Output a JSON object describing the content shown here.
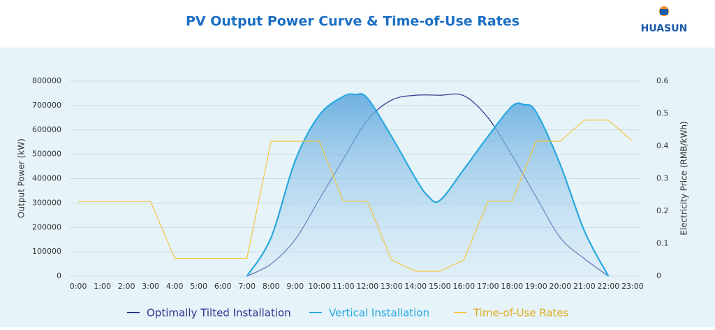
{
  "logo": "HUASUN",
  "chart_data": {
    "type": "line",
    "title": "PV Output Power Curve & Time-of-Use Rates",
    "y_label": "Output Power (kW)",
    "y2_label": "Electricity Price (RMB/kWh)",
    "xlim": [
      -0.35,
      23.35
    ],
    "xticks": [
      {
        "value": 0,
        "label": "0:00"
      },
      {
        "value": 1,
        "label": "1:00"
      },
      {
        "value": 2,
        "label": "2:00"
      },
      {
        "value": 3,
        "label": "3:00"
      },
      {
        "value": 4,
        "label": "4:00"
      },
      {
        "value": 5,
        "label": "5:00"
      },
      {
        "value": 6,
        "label": "6:00"
      },
      {
        "value": 7,
        "label": "7:00"
      },
      {
        "value": 8,
        "label": "8:00"
      },
      {
        "value": 9,
        "label": "9:00"
      },
      {
        "value": 10,
        "label": "10:00"
      },
      {
        "value": 11,
        "label": "11:00"
      },
      {
        "value": 12,
        "label": "12:00"
      },
      {
        "value": 13,
        "label": "13:00"
      },
      {
        "value": 14,
        "label": "14:00"
      },
      {
        "value": 15,
        "label": "15:00"
      },
      {
        "value": 16,
        "label": "16:00"
      },
      {
        "value": 17,
        "label": "17:00"
      },
      {
        "value": 18,
        "label": "18:00"
      },
      {
        "value": 19,
        "label": "19:00"
      },
      {
        "value": 20,
        "label": "20:00"
      },
      {
        "value": 21,
        "label": "21:00"
      },
      {
        "value": 22,
        "label": "22:00"
      },
      {
        "value": 23,
        "label": "23:00"
      }
    ],
    "ylim": [
      0,
      800000
    ],
    "yticks": [
      0,
      100000,
      200000,
      300000,
      400000,
      500000,
      600000,
      700000,
      800000
    ],
    "y2lim": [
      0,
      0.6
    ],
    "y2ticks": [
      0,
      0.1,
      0.2,
      0.3,
      0.4,
      0.5,
      0.6
    ],
    "grid": true,
    "series": [
      {
        "name": "Optimally Tilted Installation",
        "color": "#2b3990",
        "smooth": true,
        "x": [
          7,
          8,
          9,
          10,
          11,
          12,
          13,
          14,
          15,
          16,
          17,
          18,
          19,
          20,
          21,
          22
        ],
        "values": [
          0,
          50000,
          150000,
          315000,
          480000,
          640000,
          722000,
          742000,
          742000,
          740000,
          650000,
          495000,
          325000,
          158000,
          72000,
          0
        ]
      },
      {
        "name": "Vertical Installation",
        "color": "#29a8e0",
        "smooth": true,
        "fill": true,
        "x": [
          7,
          8,
          9,
          10,
          11,
          11.5,
          12,
          13,
          14,
          14.5,
          15,
          16,
          17,
          18,
          18.5,
          19,
          20,
          21,
          22
        ],
        "values": [
          0,
          158000,
          473000,
          660000,
          737000,
          745000,
          730000,
          573000,
          400000,
          330000,
          310000,
          438000,
          573000,
          697000,
          703000,
          673000,
          458000,
          186000,
          0
        ]
      },
      {
        "name": "Time-of-Use Rates",
        "color": "#f4c542",
        "axis": "y2",
        "smooth": false,
        "x": [
          0,
          3,
          4,
          7,
          8,
          10,
          11,
          12,
          13,
          14,
          15,
          16,
          17,
          18,
          19,
          20,
          21,
          22,
          23
        ],
        "values": [
          0.23,
          0.23,
          0.055,
          0.055,
          0.415,
          0.415,
          0.23,
          0.23,
          0.05,
          0.015,
          0.015,
          0.05,
          0.23,
          0.23,
          0.415,
          0.415,
          0.48,
          0.48,
          0.415
        ]
      }
    ]
  }
}
